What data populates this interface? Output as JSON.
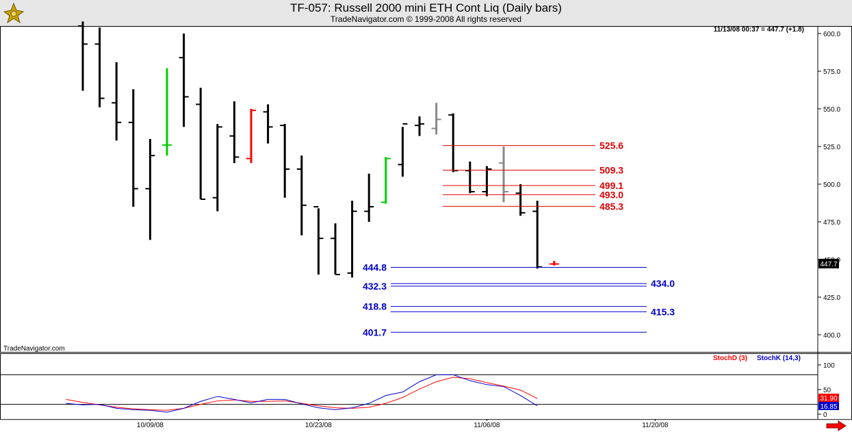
{
  "header": {
    "title": "TF-057:  Russell 2000 mini ETH Cont Liq  (Daily bars)",
    "subtitle": "TradeNavigator.com © 1999-2008 All rights reserved",
    "logo_icon": "ship-helm-logo-icon"
  },
  "watermark": "TradeNavigator.com",
  "info_readout": "11/13/08 00:37 = 447.7 (+1.8)",
  "current_price_label": "447.7",
  "scroll_icon": "right-arrow-icon",
  "colors": {
    "bar_default": "#000000",
    "bar_up": "#00cc00",
    "bar_down": "#ff0000",
    "bar_gray": "#888888",
    "resistance": "#dd0000",
    "support": "#0000cc",
    "stoch_d": "#ff0000",
    "stoch_k": "#0000cc",
    "header_bg": "#e6e6e6"
  },
  "chart_data": [
    {
      "type": "ohlc",
      "title": "TF-057:  Russell 2000 mini ETH Cont Liq  (Daily bars)",
      "ylim": [
        385,
        607
      ],
      "y_ticks": [
        400.0,
        425.0,
        450.0,
        475.0,
        500.0,
        525.0,
        550.0,
        575.0,
        600.0
      ],
      "x_tick_labels": [
        {
          "index": 4,
          "label": "10/09/08"
        },
        {
          "index": 14,
          "label": "10/23/08"
        },
        {
          "index": 24,
          "label": "11/06/08"
        },
        {
          "index": 34,
          "label": "11/20/08"
        }
      ],
      "bars": [
        {
          "o": 605,
          "h": 608,
          "l": 562,
          "c": 593,
          "color": "black"
        },
        {
          "o": 593,
          "h": 604,
          "l": 551,
          "c": 557,
          "color": "black"
        },
        {
          "o": 554,
          "h": 581,
          "l": 529,
          "c": 541,
          "color": "black"
        },
        {
          "o": 541,
          "h": 563,
          "l": 485,
          "c": 497,
          "color": "black"
        },
        {
          "o": 497,
          "h": 530,
          "l": 463,
          "c": 519,
          "color": "black"
        },
        {
          "o": 526,
          "h": 577,
          "l": 519,
          "c": 526,
          "color": "green"
        },
        {
          "o": 584,
          "h": 600,
          "l": 538,
          "c": 558,
          "color": "black"
        },
        {
          "o": 553,
          "h": 564,
          "l": 490,
          "c": 490,
          "color": "black"
        },
        {
          "o": 491,
          "h": 540,
          "l": 482,
          "c": 538,
          "color": "black"
        },
        {
          "o": 532,
          "h": 555,
          "l": 514,
          "c": 518,
          "color": "black"
        },
        {
          "o": 517,
          "h": 550,
          "l": 514,
          "c": 549,
          "color": "red"
        },
        {
          "o": 548,
          "h": 553,
          "l": 527,
          "c": 538,
          "color": "black"
        },
        {
          "o": 539,
          "h": 540,
          "l": 491,
          "c": 510,
          "color": "black"
        },
        {
          "o": 510,
          "h": 519,
          "l": 466,
          "c": 486,
          "color": "black"
        },
        {
          "o": 485,
          "h": 484,
          "l": 440,
          "c": 464,
          "color": "black"
        },
        {
          "o": 464,
          "h": 474,
          "l": 440,
          "c": 440,
          "color": "black"
        },
        {
          "o": 441,
          "h": 489,
          "l": 438,
          "c": 482,
          "color": "black"
        },
        {
          "o": 482,
          "h": 507,
          "l": 475,
          "c": 485,
          "color": "black"
        },
        {
          "o": 488,
          "h": 518,
          "l": 487,
          "c": 517,
          "color": "green"
        },
        {
          "o": 513,
          "h": 538,
          "l": 505,
          "c": 540,
          "color": "black"
        },
        {
          "o": 539,
          "h": 545,
          "l": 532,
          "c": 540,
          "color": "black"
        },
        {
          "o": 537,
          "h": 554,
          "l": 533,
          "c": 543,
          "color": "gray"
        },
        {
          "o": 546,
          "h": 547,
          "l": 508,
          "c": 509,
          "color": "black"
        },
        {
          "o": 509,
          "h": 515,
          "l": 494,
          "c": 495,
          "color": "black"
        },
        {
          "o": 495,
          "h": 512,
          "l": 492,
          "c": 510,
          "color": "black"
        },
        {
          "o": 514,
          "h": 525,
          "l": 488,
          "c": 495,
          "color": "gray"
        },
        {
          "o": 494,
          "h": 500,
          "l": 479,
          "c": 481,
          "color": "black"
        },
        {
          "o": 482,
          "h": 489,
          "l": 444,
          "c": 445,
          "color": "black"
        },
        {
          "o": 447,
          "h": 449,
          "l": 446,
          "c": 447,
          "color": "red"
        }
      ],
      "levels": [
        {
          "value": 525.6,
          "label": "525.6",
          "kind": "resistance",
          "label_side": "right"
        },
        {
          "value": 509.3,
          "label": "509.3",
          "kind": "resistance",
          "label_side": "right"
        },
        {
          "value": 499.1,
          "label": "499.1",
          "kind": "resistance",
          "label_side": "right"
        },
        {
          "value": 493.0,
          "label": "493.0",
          "kind": "resistance",
          "label_side": "right"
        },
        {
          "value": 485.3,
          "label": "485.3",
          "kind": "resistance",
          "label_side": "right"
        },
        {
          "value": 444.8,
          "label": "444.8",
          "kind": "support",
          "label_side": "left"
        },
        {
          "value": 434.0,
          "label": "434.0",
          "kind": "support",
          "label_side": "right"
        },
        {
          "value": 432.3,
          "label": "432.3",
          "kind": "support",
          "label_side": "left"
        },
        {
          "value": 418.8,
          "label": "418.8",
          "kind": "support",
          "label_side": "left"
        },
        {
          "value": 415.3,
          "label": "415.3",
          "kind": "support",
          "label_side": "right"
        },
        {
          "value": 401.7,
          "label": "401.7",
          "kind": "support",
          "label_side": "left"
        }
      ]
    },
    {
      "type": "line",
      "ylim": [
        -8,
        110
      ],
      "y_ticks": [
        0,
        50,
        100
      ],
      "legend": [
        {
          "name": "StochD (3)",
          "color": "#ff0000"
        },
        {
          "name": "StochK (14,3)",
          "color": "#0000cc"
        }
      ],
      "reference_lines": [
        20,
        80
      ],
      "last_values": {
        "d": "31.90",
        "k": "16.85"
      },
      "series": [
        {
          "name": "StochD (3)",
          "values": [
            30,
            24,
            19,
            14,
            11,
            9,
            8,
            12,
            20,
            27,
            29,
            26,
            26,
            27,
            22,
            17,
            13,
            12,
            14,
            22,
            34,
            51,
            66,
            75,
            72,
            64,
            57,
            49,
            31.9
          ],
          "start": -1
        },
        {
          "name": "StochK (14,3)",
          "values": [
            22,
            19,
            20,
            12,
            9,
            8,
            4,
            12,
            26,
            36,
            30,
            23,
            30,
            30,
            21,
            13,
            9,
            13,
            22,
            38,
            45,
            66,
            80,
            80,
            68,
            60,
            56,
            38,
            16.85
          ],
          "start": -1
        }
      ]
    }
  ]
}
